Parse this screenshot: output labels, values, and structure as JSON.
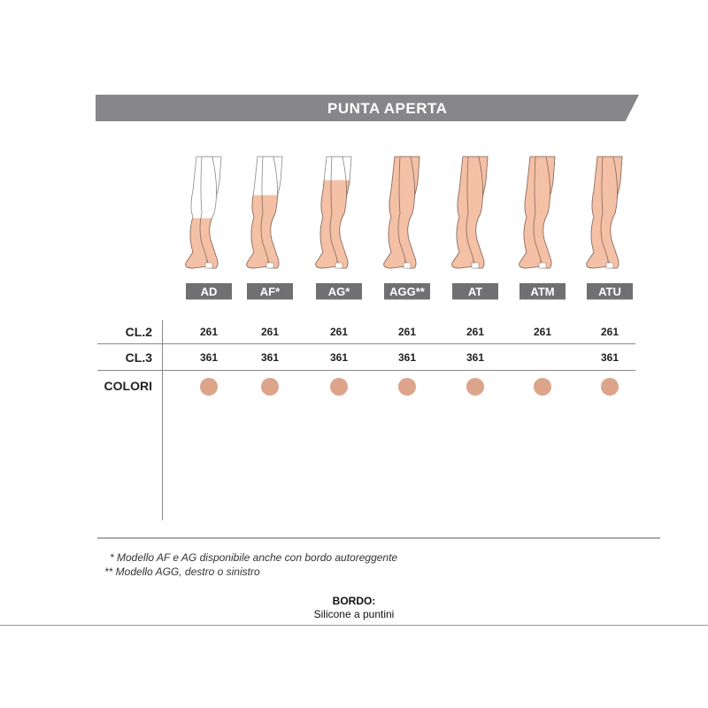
{
  "title": "PUNTA APERTA",
  "colors": {
    "skin": "#f4c0a6",
    "swatch": "#dca48a",
    "banner": "#87878a",
    "label_bg": "#707073"
  },
  "models": [
    {
      "label": "AD",
      "cl2": "261",
      "cl3": "361",
      "coverage": 0.55
    },
    {
      "label": "AF*",
      "cl2": "261",
      "cl3": "361",
      "coverage": 0.35
    },
    {
      "label": "AG*",
      "cl2": "261",
      "cl3": "361",
      "coverage": 0.22
    },
    {
      "label": "AGG**",
      "cl2": "261",
      "cl3": "361",
      "coverage": 0
    },
    {
      "label": "AT",
      "cl2": "261",
      "cl3": "361",
      "coverage": 0
    },
    {
      "label": "ATM",
      "cl2": "261",
      "cl3": "",
      "coverage": 0
    },
    {
      "label": "ATU",
      "cl2": "261",
      "cl3": "361",
      "coverage": 0
    }
  ],
  "rows": {
    "cl2": "CL.2",
    "cl3": "CL.3",
    "colori": "COLORI"
  },
  "notes": [
    "* Modello AF e AG disponibile anche con bordo autoreggente",
    "** Modello AGG, destro o sinistro"
  ],
  "bordo": {
    "label": "BORDO:",
    "value": "Silicone a puntini"
  }
}
